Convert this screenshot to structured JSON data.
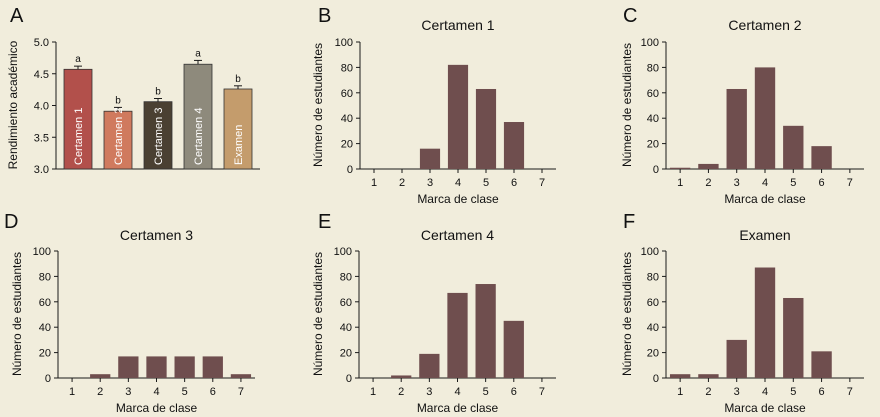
{
  "style": {
    "background": "#f1eddc",
    "axis_color": "#1a1a1a",
    "hist_bar_color": "#6f4e4e"
  },
  "chart_data": [
    {
      "panel": "A",
      "type": "bar",
      "title": "",
      "xlabel": "",
      "ylabel": "Rendimiento académico",
      "ylim": [
        3.0,
        5.0
      ],
      "yticks": [
        "3.0",
        "3.5",
        "4.0",
        "4.5",
        "5.0"
      ],
      "categories": [
        "Certamen 1",
        "Certamen 2",
        "Certamen 3",
        "Certamen 4",
        "Examen"
      ],
      "values": [
        4.57,
        3.91,
        4.06,
        4.65,
        4.26
      ],
      "errors": [
        0.05,
        0.06,
        0.05,
        0.06,
        0.05
      ],
      "letters": [
        "a",
        "b",
        "b",
        "a",
        "b"
      ],
      "colors": [
        "#b2504b",
        "#d07a5e",
        "#4a4032",
        "#8e8a7c",
        "#c49c6c"
      ]
    },
    {
      "panel": "B",
      "type": "bar",
      "title": "Certamen 1",
      "xlabel": "Marca de clase",
      "ylabel": "Número de estudiantes",
      "ylim": [
        0,
        100
      ],
      "yticks": [
        "0",
        "20",
        "40",
        "60",
        "80",
        "100"
      ],
      "categories": [
        "1",
        "2",
        "3",
        "4",
        "5",
        "6",
        "7"
      ],
      "values": [
        0,
        0,
        16,
        82,
        63,
        37,
        0
      ]
    },
    {
      "panel": "C",
      "type": "bar",
      "title": "Certamen 2",
      "xlabel": "Marca de clase",
      "ylabel": "Número de estudiantes",
      "ylim": [
        0,
        100
      ],
      "yticks": [
        "0",
        "20",
        "40",
        "60",
        "80",
        "100"
      ],
      "categories": [
        "1",
        "2",
        "3",
        "4",
        "5",
        "6",
        "7"
      ],
      "values": [
        1,
        4,
        63,
        80,
        34,
        18,
        0
      ]
    },
    {
      "panel": "D",
      "type": "bar",
      "title": "Certamen 3",
      "xlabel": "Marca de clase",
      "ylabel": "Número de estudiantes",
      "ylim": [
        0,
        100
      ],
      "yticks": [
        "0",
        "20",
        "40",
        "60",
        "80",
        "100"
      ],
      "categories": [
        "1",
        "2",
        "3",
        "4",
        "5",
        "6",
        "7"
      ],
      "values": [
        0,
        3,
        17,
        17,
        17,
        17,
        3
      ]
    },
    {
      "panel": "E",
      "type": "bar",
      "title": "Certamen 4",
      "xlabel": "Marca de clase",
      "ylabel": "Número de estudiantes",
      "ylim": [
        0,
        100
      ],
      "yticks": [
        "0",
        "20",
        "40",
        "60",
        "80",
        "100"
      ],
      "categories": [
        "1",
        "2",
        "3",
        "4",
        "5",
        "6",
        "7"
      ],
      "values": [
        0,
        2,
        19,
        67,
        74,
        45,
        0
      ]
    },
    {
      "panel": "F",
      "type": "bar",
      "title": "Examen",
      "xlabel": "Marca de clase",
      "ylabel": "Número de estudiantes",
      "ylim": [
        0,
        100
      ],
      "yticks": [
        "0",
        "20",
        "40",
        "60",
        "80",
        "100"
      ],
      "categories": [
        "1",
        "2",
        "3",
        "4",
        "5",
        "6",
        "7"
      ],
      "values": [
        3,
        3,
        30,
        87,
        63,
        21,
        0
      ]
    }
  ]
}
